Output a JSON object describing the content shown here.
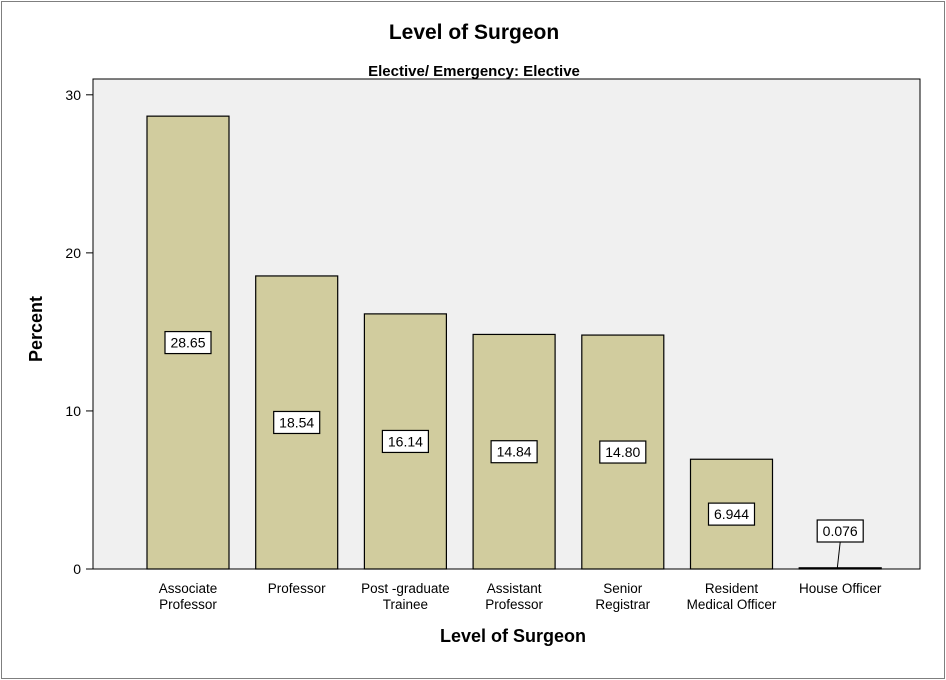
{
  "chart_data": {
    "type": "bar",
    "title": "Level of Surgeon",
    "subtitle": "Elective/ Emergency: Elective",
    "xlabel": "Level of Surgeon",
    "ylabel": "Percent",
    "ylim": [
      0,
      31
    ],
    "yticks": [
      0,
      10,
      20,
      30
    ],
    "categories": [
      [
        "Associate",
        "Professor"
      ],
      [
        "Professor"
      ],
      [
        "Post -graduate",
        "Trainee"
      ],
      [
        "Assistant",
        "Professor"
      ],
      [
        "Senior",
        "Registrar"
      ],
      [
        "Resident",
        "Medical Officer"
      ],
      [
        "House Officer"
      ]
    ],
    "values": [
      28.65,
      18.54,
      16.14,
      14.84,
      14.8,
      6.944,
      0.076
    ],
    "data_labels": [
      "28.65",
      "18.54",
      "16.14",
      "14.84",
      "14.80",
      "6.944",
      "0.076"
    ],
    "grid": false,
    "legend": "none",
    "colors": {
      "bar_fill": "#d1cc9e",
      "plot_background": "#f0f0f0",
      "outline": "#000000"
    }
  }
}
